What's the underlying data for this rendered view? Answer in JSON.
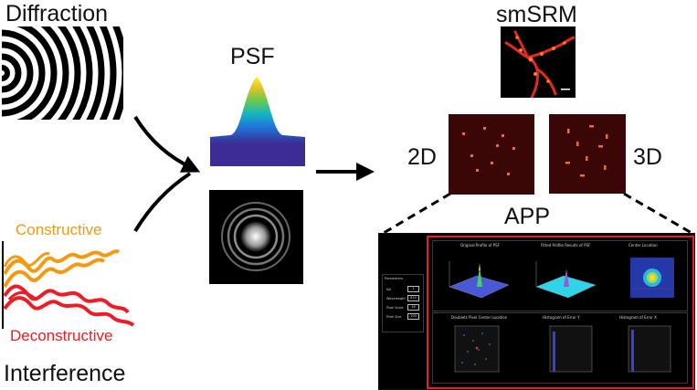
{
  "labels": {
    "diffraction": "Diffraction",
    "psf": "PSF",
    "smsrm": "smSRM",
    "two_d": "2D",
    "three_d": "3D",
    "app": "APP",
    "constructive": "Constructive",
    "deconstructive": "Deconstructive",
    "interference": "Interference"
  },
  "app_panel": {
    "panel_titles": [
      "Original Profile of PSF",
      "Fitted Profile Results of PSF",
      "Center Location",
      "Doublets Pixel Center Location",
      "Histogram of Error Y",
      "Histogram of Error X"
    ],
    "params_header": "Parameters",
    "params": [
      {
        "label": "NA",
        "value": "1"
      },
      {
        "label": "Wavelength",
        "value": "610"
      },
      {
        "label": "Pixel Scale",
        "value": "16"
      },
      {
        "label": "Pixel Size",
        "value": "100"
      }
    ]
  },
  "colors": {
    "orange": "#f39a12",
    "red": "#ee1c25",
    "app_border": "#e81d2a",
    "spot": "#ff6a1a",
    "dark_red_bg": "#3a0606"
  }
}
